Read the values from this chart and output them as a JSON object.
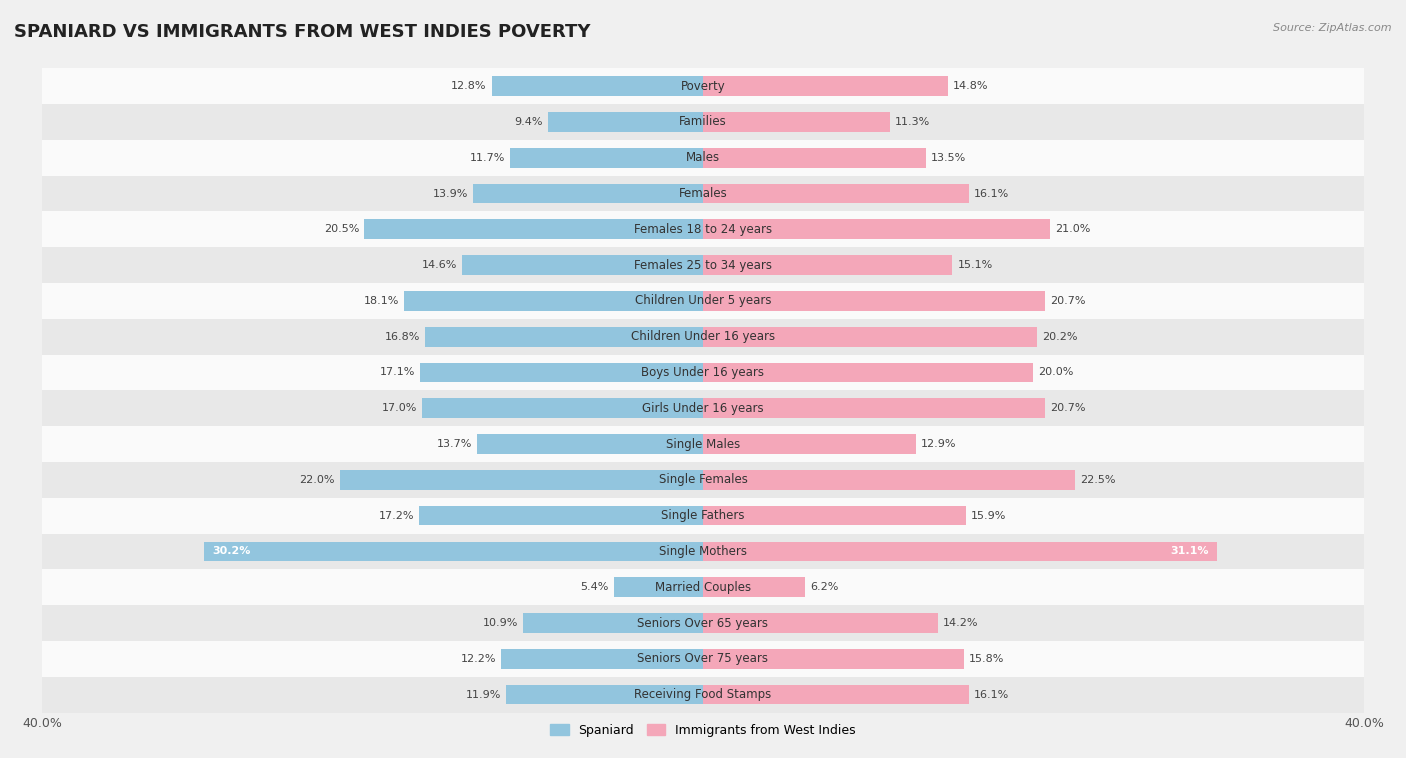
{
  "title": "SPANIARD VS IMMIGRANTS FROM WEST INDIES POVERTY",
  "source": "Source: ZipAtlas.com",
  "categories": [
    "Poverty",
    "Families",
    "Males",
    "Females",
    "Females 18 to 24 years",
    "Females 25 to 34 years",
    "Children Under 5 years",
    "Children Under 16 years",
    "Boys Under 16 years",
    "Girls Under 16 years",
    "Single Males",
    "Single Females",
    "Single Fathers",
    "Single Mothers",
    "Married Couples",
    "Seniors Over 65 years",
    "Seniors Over 75 years",
    "Receiving Food Stamps"
  ],
  "spaniard": [
    12.8,
    9.4,
    11.7,
    13.9,
    20.5,
    14.6,
    18.1,
    16.8,
    17.1,
    17.0,
    13.7,
    22.0,
    17.2,
    30.2,
    5.4,
    10.9,
    12.2,
    11.9
  ],
  "west_indies": [
    14.8,
    11.3,
    13.5,
    16.1,
    21.0,
    15.1,
    20.7,
    20.2,
    20.0,
    20.7,
    12.9,
    22.5,
    15.9,
    31.1,
    6.2,
    14.2,
    15.8,
    16.1
  ],
  "spaniard_color": "#92c5de",
  "west_indies_color": "#f4a7b9",
  "spaniard_label": "Spaniard",
  "west_indies_label": "Immigrants from West Indies",
  "xlim": 40.0,
  "background_color": "#f0f0f0",
  "row_light_color": "#fafafa",
  "row_dark_color": "#e8e8e8",
  "bar_height": 0.55,
  "title_fontsize": 13,
  "label_fontsize": 8.5,
  "value_fontsize": 8.0
}
